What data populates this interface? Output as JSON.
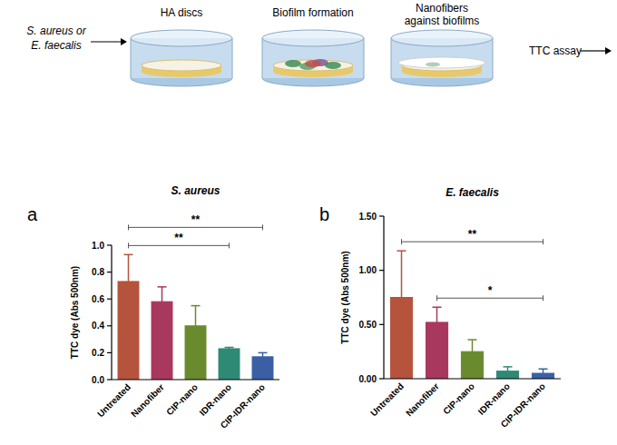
{
  "schematic": {
    "input_label": [
      "S. aureus or",
      "E. faecalis"
    ],
    "steps": [
      "HA discs",
      "Biofilm formation",
      [
        "Nanofibers",
        "against biofilms"
      ]
    ],
    "output_label": "TTC assay"
  },
  "chart_data": [
    {
      "type": "bar",
      "panel_label": "a",
      "title": "S. aureus",
      "y_label": "TTC dye (Abs 500nm)",
      "categories": [
        "Untreated",
        "Nanofiber",
        "CIP-nano",
        "IDR-nano",
        "CIP-IDR-nano"
      ],
      "values": [
        0.73,
        0.58,
        0.4,
        0.23,
        0.17
      ],
      "errors": [
        0.2,
        0.11,
        0.15,
        0.01,
        0.03
      ],
      "colors": [
        "#b5533c",
        "#a8385d",
        "#6a8a2e",
        "#2e8a74",
        "#3a5fa5"
      ],
      "ylim": [
        0,
        1.0
      ],
      "yticks": [
        {
          "value": 0,
          "label": "0.0"
        },
        0.2,
        0.4,
        0.6,
        0.8,
        {
          "value": 1.0,
          "label": "1.0"
        }
      ],
      "annotations": [
        {
          "from": "Untreated",
          "to": "CIP-IDR-nano",
          "label": "**"
        },
        {
          "from": "Untreated",
          "to": "IDR-nano",
          "label": "**"
        }
      ]
    },
    {
      "type": "bar",
      "panel_label": "b",
      "title": "E. faecalis",
      "y_label": "TTC dye (Abs 500nm)",
      "categories": [
        "Untreated",
        "Nanofiber",
        "CIP-nano",
        "IDR-nano",
        "CIP-IDR-nano"
      ],
      "values": [
        0.75,
        0.52,
        0.25,
        0.07,
        0.05
      ],
      "errors": [
        0.43,
        0.14,
        0.11,
        0.04,
        0.04
      ],
      "colors": [
        "#b5533c",
        "#a8385d",
        "#6a8a2e",
        "#2e8a74",
        "#3a5fa5"
      ],
      "ylim": [
        0,
        1.5
      ],
      "yticks": [
        {
          "value": 0,
          "label": "0.00"
        },
        {
          "value": 0.5,
          "label": "0.50"
        },
        {
          "value": 1.0,
          "label": "1.00"
        },
        {
          "value": 1.5,
          "label": "1.50"
        }
      ],
      "annotations": [
        {
          "from": "Untreated",
          "to": "CIP-IDR-nano",
          "label": "**"
        },
        {
          "from": "Nanofiber",
          "to": "CIP-IDR-nano",
          "label": "*"
        }
      ]
    }
  ]
}
